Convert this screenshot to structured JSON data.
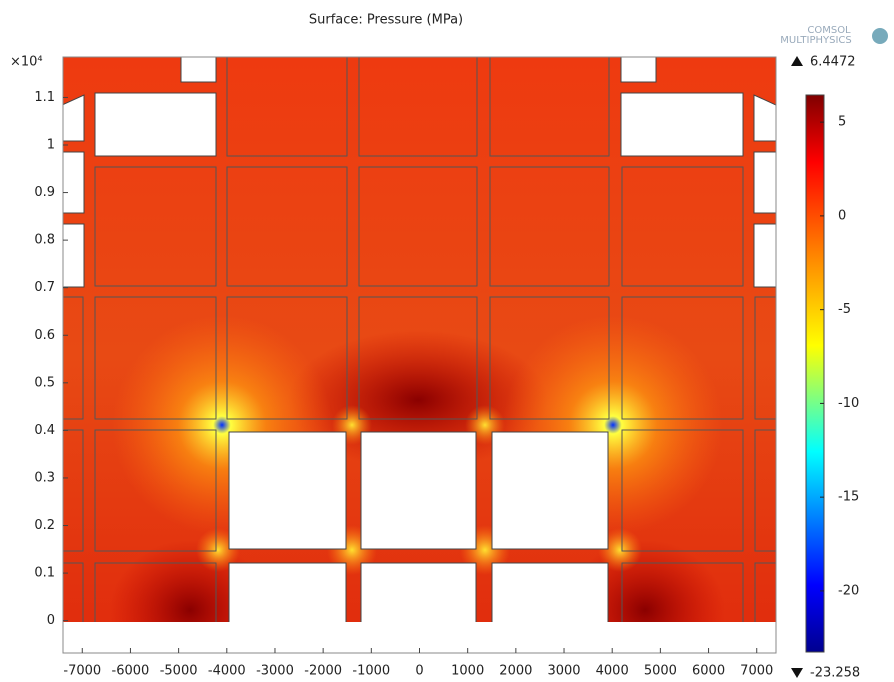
{
  "chart_data": {
    "type": "surface",
    "title": "Surface: Pressure (MPa)",
    "logo": [
      "COMSOL",
      "MULTIPHYSICS"
    ],
    "xlim": [
      -7400,
      7400
    ],
    "xticks": [
      -7000,
      -6000,
      -5000,
      -4000,
      -3000,
      -2000,
      -1000,
      0,
      1000,
      2000,
      3000,
      4000,
      5000,
      6000,
      7000
    ],
    "ylim": [
      -0.068,
      1.185
    ],
    "yticks": [
      0,
      0.1,
      0.2,
      0.3,
      0.4,
      0.5,
      0.6,
      0.7,
      0.8,
      0.9,
      1,
      1.1
    ],
    "y_multiplier": "×10⁴",
    "colorbar": {
      "min": -23.258,
      "max": 6.4472,
      "ticks": [
        5,
        0,
        -5,
        -10,
        -15,
        -20
      ]
    }
  }
}
